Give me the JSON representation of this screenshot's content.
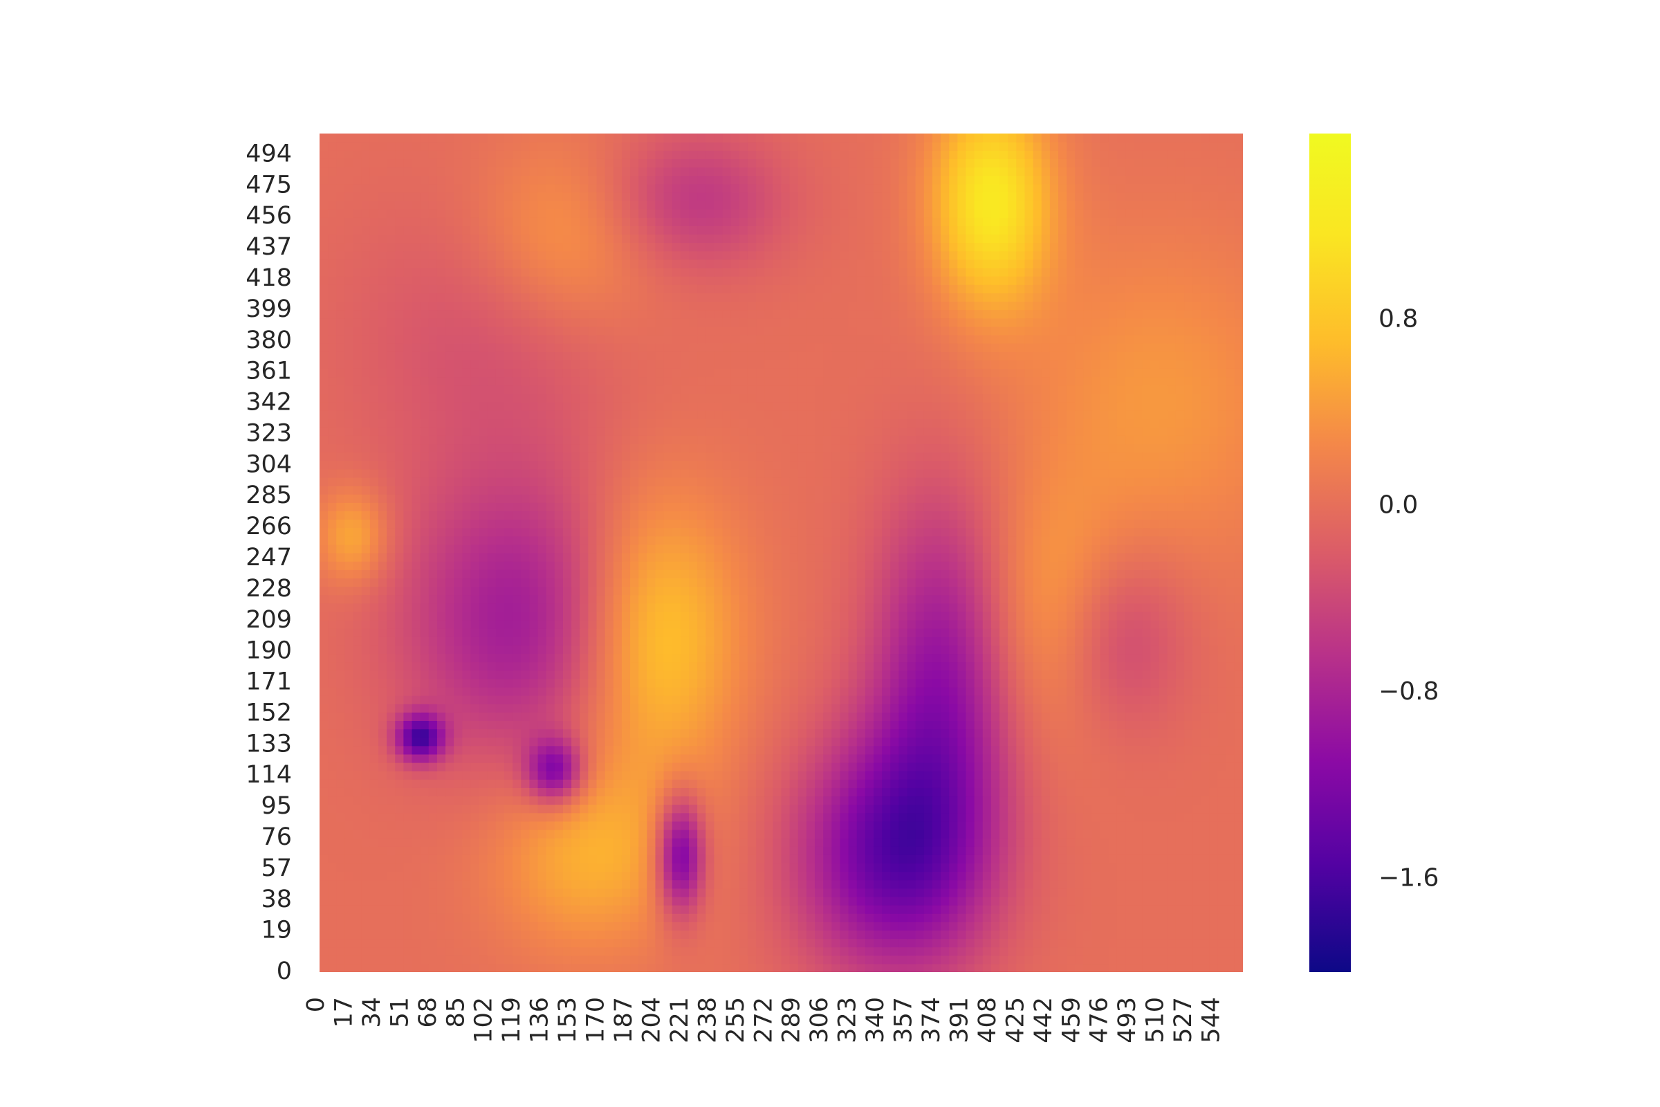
{
  "chart_data": {
    "type": "heatmap",
    "title": "",
    "xlabel": "",
    "ylabel": "",
    "colormap": "plasma",
    "y_axis_inverted": false,
    "x_tick_labels": [
      "0",
      "17",
      "34",
      "51",
      "68",
      "85",
      "102",
      "119",
      "136",
      "153",
      "170",
      "187",
      "204",
      "221",
      "238",
      "255",
      "272",
      "289",
      "306",
      "323",
      "340",
      "357",
      "374",
      "391",
      "408",
      "425",
      "442",
      "459",
      "476",
      "493",
      "510",
      "527",
      "544"
    ],
    "y_tick_labels": [
      "0",
      "19",
      "38",
      "57",
      "76",
      "95",
      "114",
      "133",
      "152",
      "171",
      "190",
      "209",
      "228",
      "247",
      "266",
      "285",
      "304",
      "323",
      "342",
      "361",
      "380",
      "399",
      "418",
      "437",
      "456",
      "475",
      "494"
    ],
    "xlim": [
      0,
      550
    ],
    "ylim": [
      0,
      500
    ],
    "colorbar": {
      "range": [
        -2.0,
        1.6
      ],
      "ticks": [
        {
          "value": 0.8,
          "label": "0.8"
        },
        {
          "value": 0.0,
          "label": "0.0"
        },
        {
          "value": -0.8,
          "label": "−0.8"
        },
        {
          "value": -1.6,
          "label": "−1.6"
        }
      ]
    },
    "flat_region_value": 0.0,
    "features": [
      {
        "x": 400,
        "y": 460,
        "value": 1.2,
        "sx": 25,
        "sy": 45
      },
      {
        "x": 200,
        "y": 200,
        "value": 0.9,
        "sx": 35,
        "sy": 60
      },
      {
        "x": 160,
        "y": 70,
        "value": 0.6,
        "sx": 40,
        "sy": 40
      },
      {
        "x": 440,
        "y": 210,
        "value": 0.6,
        "sx": 30,
        "sy": 50
      },
      {
        "x": 20,
        "y": 260,
        "value": 0.6,
        "sx": 15,
        "sy": 20
      },
      {
        "x": 120,
        "y": 210,
        "value": -0.9,
        "sx": 50,
        "sy": 60
      },
      {
        "x": 370,
        "y": 170,
        "value": -1.0,
        "sx": 30,
        "sy": 80
      },
      {
        "x": 340,
        "y": 70,
        "value": -1.3,
        "sx": 40,
        "sy": 50
      },
      {
        "x": 60,
        "y": 140,
        "value": -1.5,
        "sx": 10,
        "sy": 10
      },
      {
        "x": 140,
        "y": 120,
        "value": -1.2,
        "sx": 12,
        "sy": 14
      },
      {
        "x": 215,
        "y": 70,
        "value": -1.4,
        "sx": 10,
        "sy": 25
      },
      {
        "x": 470,
        "y": 200,
        "value": -0.6,
        "sx": 30,
        "sy": 40
      },
      {
        "x": 220,
        "y": 460,
        "value": -0.6,
        "sx": 40,
        "sy": 30
      },
      {
        "x": 100,
        "y": 380,
        "value": -0.3,
        "sx": 60,
        "sy": 60
      },
      {
        "x": 500,
        "y": 340,
        "value": 0.4,
        "sx": 60,
        "sy": 70
      },
      {
        "x": 150,
        "y": 440,
        "value": 0.5,
        "sx": 40,
        "sy": 40
      }
    ]
  }
}
